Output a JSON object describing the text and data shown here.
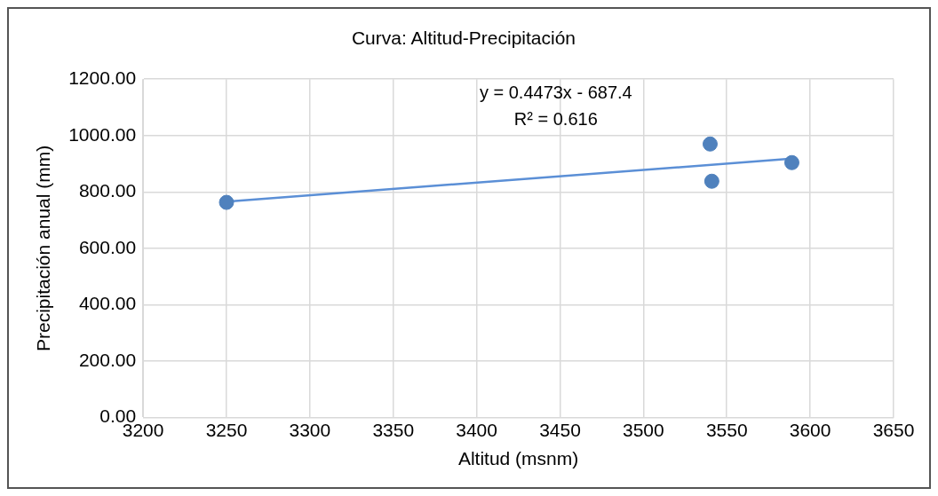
{
  "chart_data": {
    "type": "scatter",
    "title": "Curva: Altitud-Precipitación",
    "xlabel": "Altitud (msnm)",
    "ylabel": "Precipitación anual (mm)",
    "annotations": [
      "y = 0.4473x - 687.4",
      "R² = 0.616"
    ],
    "series": [
      {
        "type": "scatter",
        "color": "#4f81bd",
        "x": [
          3250,
          3540,
          3541,
          3589
        ],
        "values": [
          763,
          970,
          838,
          904
        ],
        "marker": "circle"
      },
      {
        "type": "line",
        "color": "#5b8fd6",
        "x": [
          3250,
          3589
        ],
        "values": [
          766,
          918
        ],
        "marker": "none",
        "line_style": "solid"
      }
    ],
    "xlim": [
      3200,
      3650
    ],
    "xticks": [
      3200,
      3250,
      3300,
      3350,
      3400,
      3450,
      3500,
      3550,
      3600,
      3650
    ],
    "ylim": [
      0,
      1200
    ],
    "yticks": [
      {
        "value": 0,
        "label": "0.00"
      },
      {
        "value": 200,
        "label": "200.00"
      },
      {
        "value": 400,
        "label": "400.00"
      },
      {
        "value": 600,
        "label": "600.00"
      },
      {
        "value": 800,
        "label": "800.00"
      },
      {
        "value": 1000,
        "label": "1000.00"
      },
      {
        "value": 1200,
        "label": "1200.00"
      }
    ],
    "grid": true,
    "legend": false
  }
}
